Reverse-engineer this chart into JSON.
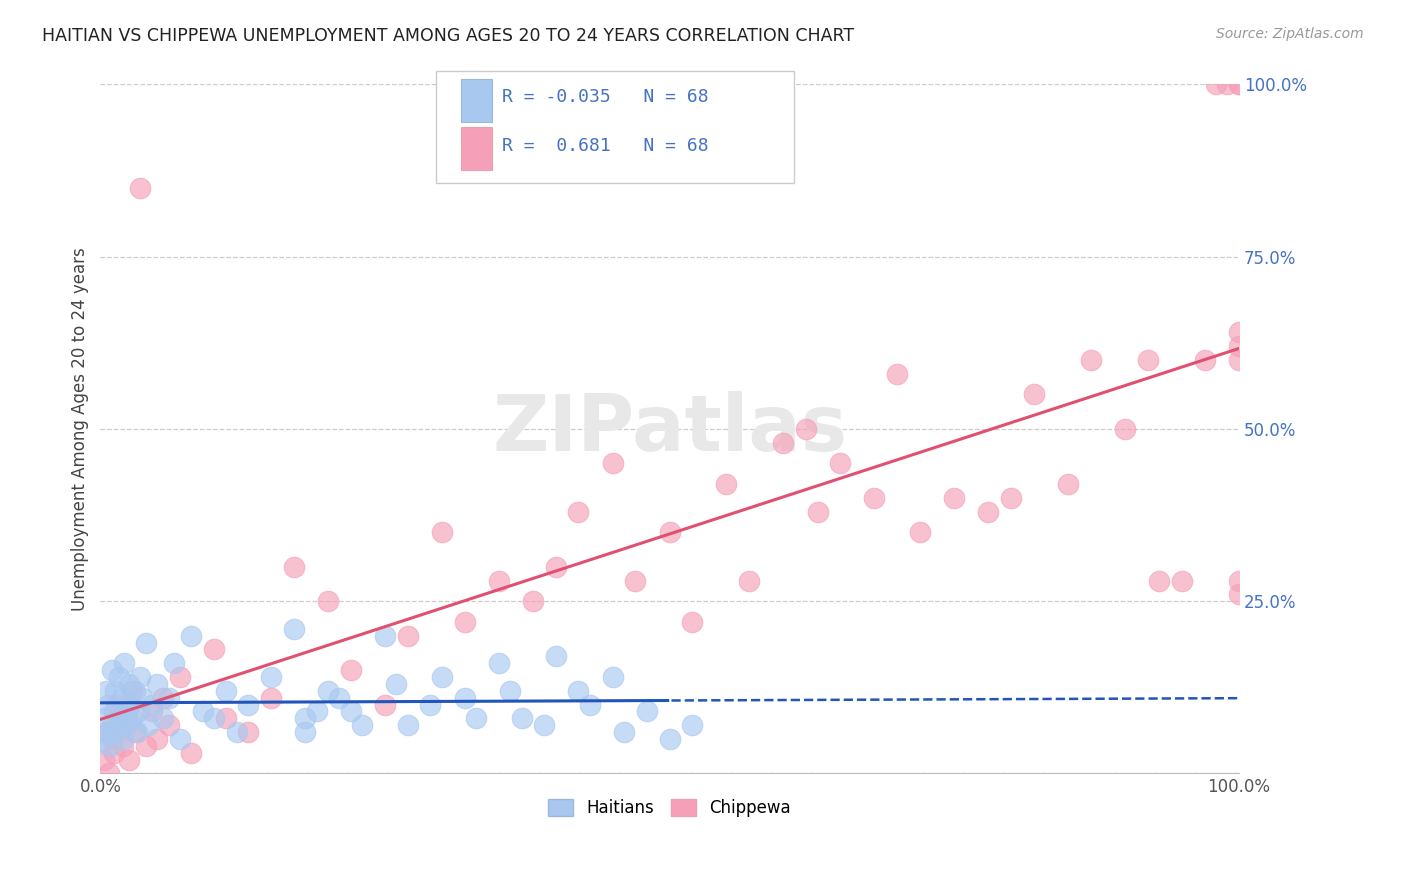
{
  "title": "HAITIAN VS CHIPPEWA UNEMPLOYMENT AMONG AGES 20 TO 24 YEARS CORRELATION CHART",
  "source": "Source: ZipAtlas.com",
  "ylabel": "Unemployment Among Ages 20 to 24 years",
  "R_haitian": -0.035,
  "R_chippewa": 0.681,
  "N": 68,
  "haitian_color": "#a8c8f0",
  "chippewa_color": "#f5a0b8",
  "haitian_line_color": "#2255bb",
  "chippewa_line_color": "#e05070",
  "background_color": "#ffffff",
  "haitian_x": [
    0.2,
    0.4,
    0.5,
    0.6,
    0.7,
    0.8,
    1.0,
    1.0,
    1.2,
    1.3,
    1.5,
    1.6,
    1.8,
    1.9,
    2.0,
    2.1,
    2.2,
    2.3,
    2.5,
    2.6,
    2.8,
    3.0,
    3.2,
    3.4,
    3.5,
    3.7,
    4.0,
    4.2,
    4.5,
    5.0,
    5.5,
    6.0,
    6.5,
    7.0,
    8.0,
    9.0,
    10.0,
    11.0,
    12.0,
    13.0,
    15.0,
    17.0,
    18.0,
    20.0,
    22.0,
    25.0,
    27.0,
    30.0,
    32.0,
    35.0,
    37.0,
    40.0,
    42.0,
    45.0,
    18.0,
    19.0,
    21.0,
    23.0,
    26.0,
    29.0,
    33.0,
    36.0,
    39.0,
    43.0,
    46.0,
    48.0,
    50.0,
    52.0
  ],
  "haitian_y": [
    5.0,
    8.0,
    12.0,
    6.0,
    10.0,
    4.0,
    15.0,
    7.0,
    9.0,
    12.0,
    6.0,
    14.0,
    8.0,
    11.0,
    5.0,
    16.0,
    9.0,
    7.0,
    13.0,
    10.0,
    8.0,
    12.0,
    6.0,
    9.0,
    14.0,
    11.0,
    19.0,
    7.0,
    10.0,
    13.0,
    8.0,
    11.0,
    16.0,
    5.0,
    20.0,
    9.0,
    8.0,
    12.0,
    6.0,
    10.0,
    14.0,
    21.0,
    8.0,
    12.0,
    9.0,
    20.0,
    7.0,
    14.0,
    11.0,
    16.0,
    8.0,
    17.0,
    12.0,
    14.0,
    6.0,
    9.0,
    11.0,
    7.0,
    13.0,
    10.0,
    8.0,
    12.0,
    7.0,
    10.0,
    6.0,
    9.0,
    5.0,
    7.0
  ],
  "chippewa_x": [
    0.3,
    0.5,
    0.8,
    1.0,
    1.2,
    1.5,
    1.8,
    2.0,
    2.3,
    2.5,
    2.8,
    3.0,
    3.5,
    4.0,
    4.5,
    5.0,
    5.5,
    6.0,
    7.0,
    8.0,
    10.0,
    11.0,
    13.0,
    15.0,
    17.0,
    20.0,
    22.0,
    25.0,
    27.0,
    30.0,
    32.0,
    35.0,
    38.0,
    40.0,
    42.0,
    45.0,
    47.0,
    50.0,
    52.0,
    55.0,
    57.0,
    60.0,
    62.0,
    63.0,
    65.0,
    68.0,
    70.0,
    72.0,
    75.0,
    78.0,
    80.0,
    82.0,
    85.0,
    87.0,
    90.0,
    92.0,
    93.0,
    95.0,
    97.0,
    98.0,
    99.0,
    100.0,
    100.0,
    100.0,
    100.0,
    100.0,
    100.0,
    100.0
  ],
  "chippewa_y": [
    2.0,
    6.0,
    0.0,
    5.0,
    3.0,
    10.0,
    7.0,
    4.0,
    8.0,
    2.0,
    12.0,
    6.0,
    85.0,
    4.0,
    9.0,
    5.0,
    11.0,
    7.0,
    14.0,
    3.0,
    18.0,
    8.0,
    6.0,
    11.0,
    30.0,
    25.0,
    15.0,
    10.0,
    20.0,
    35.0,
    22.0,
    28.0,
    25.0,
    30.0,
    38.0,
    45.0,
    28.0,
    35.0,
    22.0,
    42.0,
    28.0,
    48.0,
    50.0,
    38.0,
    45.0,
    40.0,
    58.0,
    35.0,
    40.0,
    38.0,
    40.0,
    55.0,
    42.0,
    60.0,
    50.0,
    60.0,
    28.0,
    28.0,
    60.0,
    100.0,
    100.0,
    100.0,
    100.0,
    60.0,
    62.0,
    64.0,
    28.0,
    26.0
  ]
}
